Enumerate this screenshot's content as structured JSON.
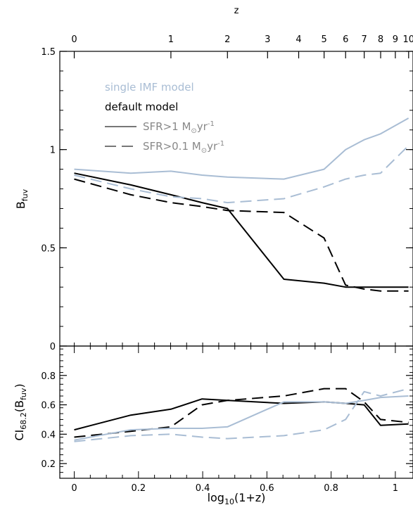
{
  "chart_data": [
    {
      "type": "line",
      "ylabel_main": "B",
      "ylabel_sub": "fuv",
      "ylim": [
        0,
        1.5
      ],
      "xlim": [
        -0.045,
        1.055
      ],
      "yticks": [
        0,
        0.5,
        1,
        1.5
      ],
      "ytick_labels": [
        "0",
        "0.5",
        "1",
        "1.5"
      ],
      "top_axis": {
        "label": "z",
        "ticks": [
          0,
          1,
          2,
          3,
          4,
          5,
          6,
          7,
          8,
          9,
          10
        ]
      },
      "legend": {
        "group1": "single IMF model",
        "group2": "default model",
        "solid_main": "SFR>1 M",
        "solid_sub": "⊙",
        "solid_tail": "yr",
        "solid_sup": "-1",
        "dashed_main": "SFR>0.1 M",
        "dashed_sub": "⊙",
        "dashed_tail": "yr",
        "dashed_sup": "-1"
      },
      "series": [
        {
          "name": "default model, SFR>1",
          "color": "#000000",
          "dash": "solid",
          "x": [
            0,
            0.176,
            0.301,
            0.398,
            0.477,
            0.653,
            0.778,
            0.845,
            0.903,
            0.954,
            1.041
          ],
          "y": [
            0.88,
            0.82,
            0.77,
            0.73,
            0.7,
            0.34,
            0.32,
            0.3,
            0.3,
            0.3,
            0.3
          ]
        },
        {
          "name": "default model, SFR>0.1",
          "color": "#000000",
          "dash": "dashed",
          "x": [
            0,
            0.176,
            0.301,
            0.398,
            0.477,
            0.653,
            0.778,
            0.845,
            0.903,
            0.954,
            1.041
          ],
          "y": [
            0.85,
            0.77,
            0.73,
            0.71,
            0.69,
            0.68,
            0.55,
            0.31,
            0.29,
            0.28,
            0.28
          ]
        },
        {
          "name": "single IMF model, SFR>1",
          "color": "#a9bdd4",
          "dash": "solid",
          "x": [
            0,
            0.176,
            0.301,
            0.398,
            0.477,
            0.653,
            0.778,
            0.845,
            0.903,
            0.954,
            1.041
          ],
          "y": [
            0.9,
            0.88,
            0.89,
            0.87,
            0.86,
            0.85,
            0.9,
            1.0,
            1.05,
            1.08,
            1.16
          ]
        },
        {
          "name": "single IMF model, SFR>0.1",
          "color": "#a9bdd4",
          "dash": "dashed",
          "x": [
            0,
            0.176,
            0.301,
            0.398,
            0.477,
            0.653,
            0.778,
            0.845,
            0.903,
            0.954,
            1.041
          ],
          "y": [
            0.87,
            0.8,
            0.76,
            0.75,
            0.73,
            0.75,
            0.81,
            0.85,
            0.87,
            0.88,
            1.02
          ]
        }
      ]
    },
    {
      "type": "line",
      "xlabel": "log",
      "xlabel_sub": "10",
      "xlabel_tail": "(1+z)",
      "ylabel_main": "CI",
      "ylabel_sub": "68.2",
      "ylabel_tail": "(B",
      "ylabel_sub2": "fuv",
      "ylabel_end": ")",
      "ylim": [
        0.1,
        1.0
      ],
      "xlim": [
        -0.045,
        1.055
      ],
      "yticks": [
        0.2,
        0.4,
        0.6,
        0.8
      ],
      "ytick_labels": [
        "0.2",
        "0.4",
        "0.6",
        "0.8"
      ],
      "xticks": [
        0,
        0.2,
        0.4,
        0.6,
        0.8,
        1
      ],
      "xtick_labels": [
        "0",
        "0.2",
        "0.4",
        "0.6",
        "0.8",
        "1"
      ],
      "series": [
        {
          "name": "default model, SFR>1",
          "color": "#000000",
          "dash": "solid",
          "x": [
            0,
            0.176,
            0.301,
            0.398,
            0.477,
            0.653,
            0.778,
            0.845,
            0.903,
            0.954,
            1.041
          ],
          "y": [
            0.43,
            0.53,
            0.57,
            0.64,
            0.63,
            0.61,
            0.62,
            0.61,
            0.6,
            0.46,
            0.47
          ]
        },
        {
          "name": "default model, SFR>0.1",
          "color": "#000000",
          "dash": "dashed",
          "x": [
            0,
            0.176,
            0.301,
            0.398,
            0.477,
            0.653,
            0.778,
            0.845,
            0.903,
            0.954,
            1.041
          ],
          "y": [
            0.38,
            0.42,
            0.45,
            0.6,
            0.63,
            0.66,
            0.71,
            0.71,
            0.62,
            0.5,
            0.48
          ]
        },
        {
          "name": "single IMF model, SFR>1",
          "color": "#a9bdd4",
          "dash": "solid",
          "x": [
            0,
            0.176,
            0.301,
            0.398,
            0.477,
            0.653,
            0.778,
            0.845,
            0.903,
            0.954,
            1.041
          ],
          "y": [
            0.36,
            0.43,
            0.44,
            0.44,
            0.45,
            0.62,
            0.62,
            0.61,
            0.63,
            0.65,
            0.66
          ]
        },
        {
          "name": "single IMF model, SFR>0.1",
          "color": "#a9bdd4",
          "dash": "dashed",
          "x": [
            0,
            0.176,
            0.301,
            0.398,
            0.477,
            0.653,
            0.778,
            0.845,
            0.903,
            0.954,
            1.041
          ],
          "y": [
            0.35,
            0.39,
            0.4,
            0.38,
            0.37,
            0.39,
            0.43,
            0.5,
            0.69,
            0.66,
            0.71
          ]
        }
      ]
    }
  ]
}
